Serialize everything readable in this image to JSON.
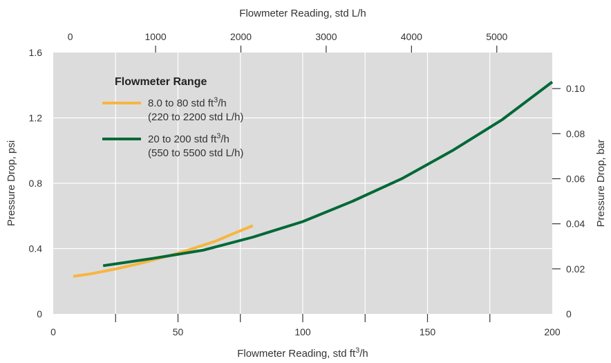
{
  "chart_data": {
    "type": "line",
    "xlabel_top": "Flowmeter Reading, std L/h",
    "xlabel_bottom_main": "Flowmeter Reading, std ft",
    "xlabel_bottom_sup": "3",
    "xlabel_bottom_end": "/h",
    "ylabel_left": "Pressure Drop, psi",
    "ylabel_right": "Pressure Drop, bar",
    "xlim": [
      0,
      200
    ],
    "ylim": [
      0,
      1.6
    ],
    "xticks_bottom": [
      0,
      50,
      100,
      150,
      200
    ],
    "xticks_bottom_labels": [
      "0",
      "50",
      "100",
      "150",
      "200"
    ],
    "xticks_top_values_lph": [
      0,
      1000,
      2000,
      3000,
      4000,
      5000
    ],
    "xticks_top_labels": [
      "0",
      "1000",
      "2000",
      "3000",
      "4000",
      "5000"
    ],
    "top_axis_range_lph": [
      -200,
      5650
    ],
    "yticks_left": [
      0,
      0.4,
      0.8,
      1.2,
      1.6
    ],
    "yticks_left_labels": [
      "0",
      "0.4",
      "0.8",
      "1.2",
      "1.6"
    ],
    "yticks_right_bar": [
      0,
      0.02,
      0.04,
      0.06,
      0.08,
      0.1
    ],
    "yticks_right_labels": [
      "0",
      "0.02",
      "0.04",
      "0.06",
      "0.08",
      "0.10"
    ],
    "grid": true,
    "legend_title": "Flowmeter Range",
    "series": [
      {
        "name_main": "8.0 to 80 std ft",
        "name_sup": "3",
        "name_end": "/h",
        "name_line2": "(220 to 2200 std L/h)",
        "color": "#F7B540",
        "x": [
          8,
          15,
          25,
          35,
          45,
          55,
          65,
          72,
          80
        ],
        "y": [
          0.23,
          0.245,
          0.275,
          0.31,
          0.35,
          0.395,
          0.445,
          0.49,
          0.54
        ]
      },
      {
        "name_main": "20 to 200 std ft",
        "name_sup": "3",
        "name_end": "/h",
        "name_line2": "(550 to 5500 std L/h)",
        "color": "#006837",
        "x": [
          20,
          40,
          60,
          80,
          100,
          120,
          140,
          160,
          180,
          200
        ],
        "y": [
          0.295,
          0.34,
          0.39,
          0.47,
          0.565,
          0.69,
          0.83,
          1.0,
          1.19,
          1.42
        ]
      }
    ],
    "colors": {
      "plot_background": "#DCDCDC",
      "grid": "#FFFFFF",
      "text": "#333333"
    }
  }
}
